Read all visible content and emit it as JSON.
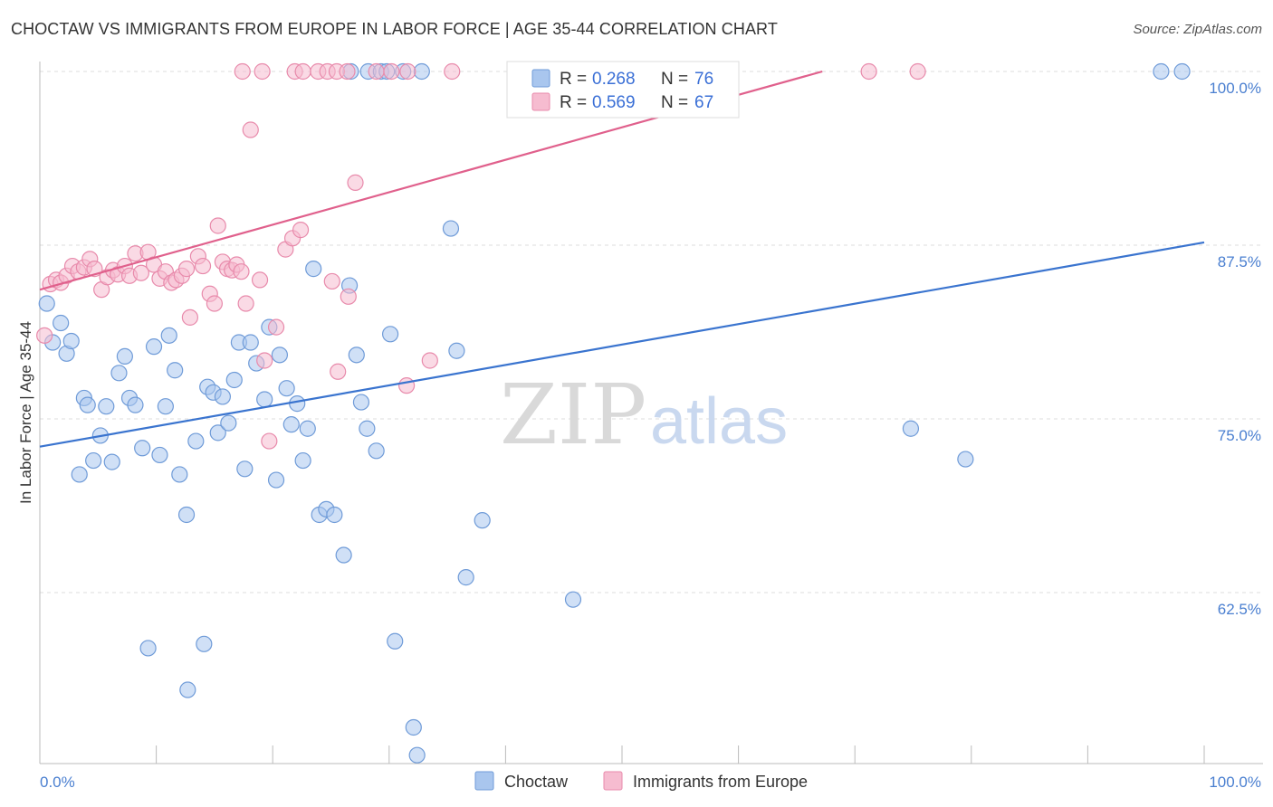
{
  "title": "CHOCTAW VS IMMIGRANTS FROM EUROPE IN LABOR FORCE | AGE 35-44 CORRELATION CHART",
  "source": "Source: ZipAtlas.com",
  "watermark": {
    "zip": "ZIP",
    "atlas": "atlas"
  },
  "colors": {
    "blue_fill": "#a9c6ee",
    "blue_stroke": "#6f9bd8",
    "blue_line": "#3a74cf",
    "pink_fill": "#f6bcd0",
    "pink_stroke": "#e88aab",
    "pink_line": "#e0608c",
    "grid": "#dddddd",
    "tick_text": "#4a7fd0"
  },
  "chart_data": {
    "type": "scatter",
    "xlabel": "",
    "ylabel": "In Labor Force | Age 35-44",
    "xlim": [
      0,
      100
    ],
    "ylim": [
      50,
      101
    ],
    "x_tick_labels": {
      "left": "0.0%",
      "right": "100.0%"
    },
    "y_ticks": [
      {
        "value": 100,
        "label": "100.0%"
      },
      {
        "value": 87.5,
        "label": "87.5%"
      },
      {
        "value": 75,
        "label": "75.0%"
      },
      {
        "value": 62.5,
        "label": "62.5%"
      }
    ],
    "legend": [
      {
        "r_label": "R =",
        "r_value": "0.268",
        "n_label": "N =",
        "n_value": "76"
      },
      {
        "r_label": "R =",
        "r_value": "0.569",
        "n_label": "N =",
        "n_value": "67"
      }
    ],
    "series": [
      {
        "name": "Choctaw",
        "trend": {
          "x0": 0,
          "y0": 73.0,
          "x1": 100,
          "y1": 87.7
        },
        "points": [
          [
            0.6,
            83.3
          ],
          [
            1.1,
            80.5
          ],
          [
            1.8,
            81.9
          ],
          [
            2.3,
            79.7
          ],
          [
            2.7,
            80.6
          ],
          [
            3.4,
            71.0
          ],
          [
            3.8,
            76.5
          ],
          [
            4.1,
            76.0
          ],
          [
            4.6,
            72.0
          ],
          [
            5.2,
            73.8
          ],
          [
            5.7,
            75.9
          ],
          [
            6.2,
            71.9
          ],
          [
            6.8,
            78.3
          ],
          [
            7.3,
            79.5
          ],
          [
            7.7,
            76.5
          ],
          [
            8.2,
            76.0
          ],
          [
            8.8,
            72.9
          ],
          [
            9.3,
            58.5
          ],
          [
            9.8,
            80.2
          ],
          [
            10.3,
            72.4
          ],
          [
            10.8,
            75.9
          ],
          [
            11.1,
            81.0
          ],
          [
            11.6,
            78.5
          ],
          [
            12.0,
            71.0
          ],
          [
            12.6,
            68.1
          ],
          [
            12.7,
            55.5
          ],
          [
            13.4,
            73.4
          ],
          [
            14.1,
            58.8
          ],
          [
            14.4,
            77.3
          ],
          [
            14.9,
            76.9
          ],
          [
            15.3,
            74.0
          ],
          [
            15.7,
            76.6
          ],
          [
            16.2,
            74.7
          ],
          [
            16.7,
            77.8
          ],
          [
            17.1,
            80.5
          ],
          [
            17.6,
            71.4
          ],
          [
            18.1,
            80.5
          ],
          [
            18.6,
            79.0
          ],
          [
            19.3,
            76.4
          ],
          [
            19.7,
            81.6
          ],
          [
            20.3,
            70.6
          ],
          [
            20.6,
            79.6
          ],
          [
            21.2,
            77.2
          ],
          [
            21.6,
            74.6
          ],
          [
            22.1,
            76.1
          ],
          [
            22.6,
            72.0
          ],
          [
            23.0,
            74.3
          ],
          [
            23.5,
            85.8
          ],
          [
            24.0,
            68.1
          ],
          [
            24.6,
            68.5
          ],
          [
            25.3,
            68.1
          ],
          [
            26.1,
            65.2
          ],
          [
            26.6,
            84.6
          ],
          [
            27.2,
            79.6
          ],
          [
            27.6,
            76.2
          ],
          [
            28.1,
            74.3
          ],
          [
            28.9,
            72.7
          ],
          [
            30.1,
            81.1
          ],
          [
            30.5,
            59.0
          ],
          [
            32.1,
            52.8
          ],
          [
            32.4,
            50.8
          ],
          [
            35.3,
            88.7
          ],
          [
            35.8,
            79.9
          ],
          [
            36.6,
            63.6
          ],
          [
            38.0,
            67.7
          ],
          [
            45.8,
            62.0
          ],
          [
            26.7,
            100
          ],
          [
            28.2,
            100
          ],
          [
            29.3,
            100
          ],
          [
            31.2,
            100
          ],
          [
            32.8,
            100
          ],
          [
            74.8,
            74.3
          ],
          [
            79.5,
            72.1
          ],
          [
            96.3,
            100
          ],
          [
            98.1,
            100
          ],
          [
            29.8,
            100
          ]
        ]
      },
      {
        "name": "Immigrants from Europe",
        "trend": {
          "x0": 0,
          "y0": 84.3,
          "x1": 67.2,
          "y1": 100
        },
        "points": [
          [
            0.4,
            81.0
          ],
          [
            0.9,
            84.7
          ],
          [
            1.4,
            85.0
          ],
          [
            1.8,
            84.8
          ],
          [
            2.3,
            85.3
          ],
          [
            2.8,
            86.0
          ],
          [
            3.3,
            85.6
          ],
          [
            3.8,
            85.9
          ],
          [
            4.3,
            86.5
          ],
          [
            4.7,
            85.8
          ],
          [
            5.3,
            84.3
          ],
          [
            5.8,
            85.2
          ],
          [
            6.3,
            85.7
          ],
          [
            6.7,
            85.4
          ],
          [
            7.3,
            86.0
          ],
          [
            7.7,
            85.3
          ],
          [
            8.2,
            86.9
          ],
          [
            8.7,
            85.5
          ],
          [
            9.3,
            87.0
          ],
          [
            9.8,
            86.1
          ],
          [
            10.3,
            85.1
          ],
          [
            10.8,
            85.6
          ],
          [
            11.3,
            84.8
          ],
          [
            11.7,
            85.0
          ],
          [
            12.2,
            85.3
          ],
          [
            12.6,
            85.8
          ],
          [
            12.9,
            82.3
          ],
          [
            13.6,
            86.7
          ],
          [
            14.0,
            86.0
          ],
          [
            14.6,
            84.0
          ],
          [
            15.0,
            83.3
          ],
          [
            15.3,
            88.9
          ],
          [
            15.7,
            86.3
          ],
          [
            16.1,
            85.8
          ],
          [
            16.5,
            85.7
          ],
          [
            16.9,
            86.1
          ],
          [
            17.3,
            85.6
          ],
          [
            17.7,
            83.3
          ],
          [
            18.1,
            95.8
          ],
          [
            18.9,
            85.0
          ],
          [
            19.3,
            79.2
          ],
          [
            19.7,
            73.4
          ],
          [
            20.3,
            81.6
          ],
          [
            21.1,
            87.2
          ],
          [
            21.7,
            88.0
          ],
          [
            22.4,
            88.6
          ],
          [
            25.1,
            84.9
          ],
          [
            25.6,
            78.4
          ],
          [
            26.5,
            83.8
          ],
          [
            27.1,
            92.0
          ],
          [
            31.5,
            77.4
          ],
          [
            33.5,
            79.2
          ],
          [
            17.4,
            100
          ],
          [
            19.1,
            100
          ],
          [
            21.9,
            100
          ],
          [
            22.6,
            100
          ],
          [
            23.9,
            100
          ],
          [
            24.7,
            100
          ],
          [
            25.5,
            100
          ],
          [
            26.4,
            100
          ],
          [
            28.9,
            100
          ],
          [
            30.2,
            100
          ],
          [
            31.6,
            100
          ],
          [
            35.4,
            100
          ],
          [
            56.2,
            100
          ],
          [
            71.2,
            100
          ],
          [
            75.4,
            100
          ]
        ]
      }
    ]
  },
  "bottom_legend": [
    {
      "label": "Choctaw"
    },
    {
      "label": "Immigrants from Europe"
    }
  ]
}
